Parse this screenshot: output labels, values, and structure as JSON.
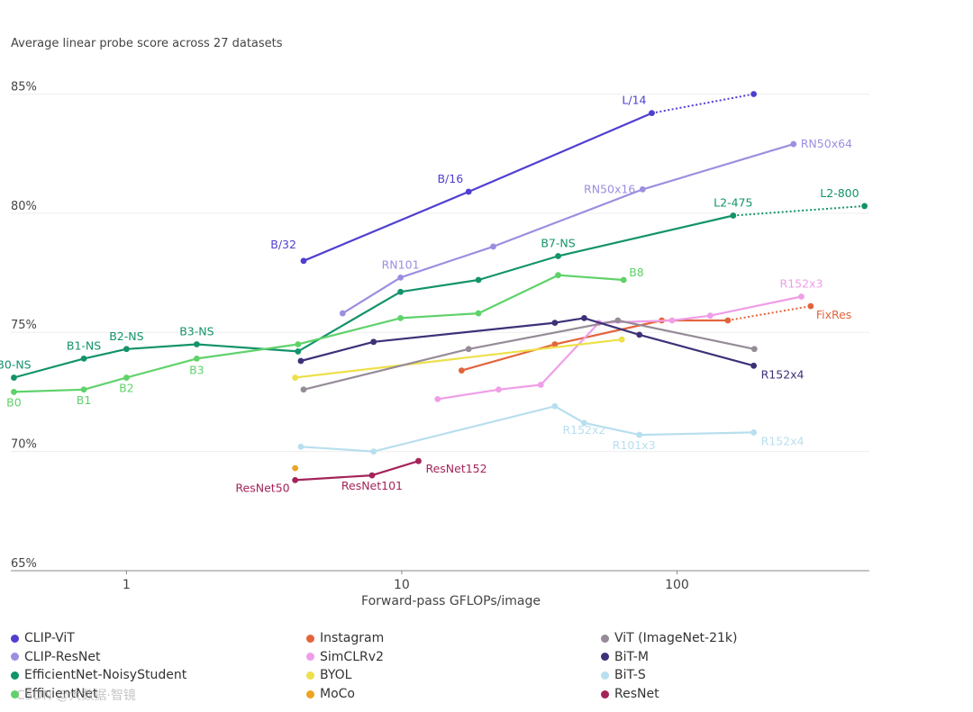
{
  "chart_data": {
    "type": "line",
    "title": "Average linear probe score across 27 datasets",
    "xlabel": "Forward-pass GFLOPs/image",
    "xscale": "log",
    "xlim": [
      0.38,
      500
    ],
    "ylim": [
      65,
      86
    ],
    "yticks": [
      {
        "value": 85,
        "label": "85%"
      },
      {
        "value": 80,
        "label": "80%"
      },
      {
        "value": 75,
        "label": "75%"
      },
      {
        "value": 70,
        "label": "70%"
      },
      {
        "value": 65,
        "label": "65%"
      }
    ],
    "xticks": [
      {
        "value": 1,
        "label": "1"
      },
      {
        "value": 10,
        "label": "10"
      },
      {
        "value": 100,
        "label": "100"
      }
    ],
    "series": [
      {
        "name": "CLIP-ViT",
        "color": "#4f3fd0",
        "points": [
          {
            "x": 4.4,
            "y": 78.0,
            "label": "B/32"
          },
          {
            "x": 17.5,
            "y": 80.9,
            "label": "B/16"
          },
          {
            "x": 81,
            "y": 84.2,
            "label": "L/14"
          }
        ],
        "extension": [
          {
            "x": 81,
            "y": 84.2
          },
          {
            "x": 190,
            "y": 85.0
          }
        ]
      },
      {
        "name": "CLIP-ResNet",
        "color": "#9b8fe0",
        "points": [
          {
            "x": 6.1,
            "y": 75.8
          },
          {
            "x": 9.9,
            "y": 77.3,
            "label": "RN101"
          },
          {
            "x": 21.5,
            "y": 78.6
          },
          {
            "x": 75,
            "y": 81.0,
            "label": "RN50x16"
          },
          {
            "x": 265,
            "y": 82.9,
            "label": "RN50x64"
          }
        ]
      },
      {
        "name": "EfficientNet-NoisyStudent",
        "color": "#13936b",
        "points": [
          {
            "x": 0.39,
            "y": 73.1,
            "label": "B0-NS"
          },
          {
            "x": 0.7,
            "y": 73.9,
            "label": "B1-NS"
          },
          {
            "x": 1.0,
            "y": 74.3,
            "label": "B2-NS"
          },
          {
            "x": 1.8,
            "y": 74.5,
            "label": "B3-NS"
          },
          {
            "x": 4.2,
            "y": 74.2
          },
          {
            "x": 9.9,
            "y": 76.7
          },
          {
            "x": 19,
            "y": 77.2
          },
          {
            "x": 37,
            "y": 78.2,
            "label": "B7-NS"
          },
          {
            "x": 160,
            "y": 79.9,
            "label": "L2-475"
          }
        ],
        "extension": [
          {
            "x": 160,
            "y": 79.9
          },
          {
            "x": 480,
            "y": 80.3,
            "label": "L2-800"
          }
        ]
      },
      {
        "name": "EfficientNet",
        "color": "#5fd26a",
        "points": [
          {
            "x": 0.39,
            "y": 72.5,
            "label": "B0"
          },
          {
            "x": 0.7,
            "y": 72.6,
            "label": "B1"
          },
          {
            "x": 1.0,
            "y": 73.1,
            "label": "B2"
          },
          {
            "x": 1.8,
            "y": 73.9,
            "label": "B3"
          },
          {
            "x": 4.2,
            "y": 74.5
          },
          {
            "x": 9.9,
            "y": 75.6
          },
          {
            "x": 19,
            "y": 75.8
          },
          {
            "x": 37,
            "y": 77.4
          },
          {
            "x": 64,
            "y": 77.2,
            "label": "B8"
          }
        ]
      },
      {
        "name": "Instagram",
        "color": "#e3643b",
        "points": [
          {
            "x": 16.5,
            "y": 73.4
          },
          {
            "x": 36,
            "y": 74.5
          },
          {
            "x": 88,
            "y": 75.5
          },
          {
            "x": 153,
            "y": 75.5
          }
        ],
        "extension": [
          {
            "x": 153,
            "y": 75.5
          },
          {
            "x": 306,
            "y": 76.1,
            "label": "FixRes"
          }
        ]
      },
      {
        "name": "SimCLRv2",
        "color": "#ef9ee8",
        "points": [
          {
            "x": 13.5,
            "y": 72.2
          },
          {
            "x": 22.5,
            "y": 72.6
          },
          {
            "x": 32,
            "y": 72.8
          },
          {
            "x": 52,
            "y": 75.4
          },
          {
            "x": 96,
            "y": 75.5
          },
          {
            "x": 132,
            "y": 75.7
          },
          {
            "x": 283,
            "y": 76.5,
            "label": "R152x3"
          }
        ]
      },
      {
        "name": "BYOL",
        "color": "#ede04a",
        "points": [
          {
            "x": 4.1,
            "y": 73.1
          },
          {
            "x": 63,
            "y": 74.7
          }
        ]
      },
      {
        "name": "MoCo",
        "color": "#eca422",
        "points": [
          {
            "x": 4.1,
            "y": 69.3
          }
        ]
      },
      {
        "name": "ViT (ImageNet-21k)",
        "color": "#968b98",
        "points": [
          {
            "x": 4.4,
            "y": 72.6
          },
          {
            "x": 17.5,
            "y": 74.3
          },
          {
            "x": 61,
            "y": 75.5
          },
          {
            "x": 191,
            "y": 74.3
          }
        ]
      },
      {
        "name": "BiT-M",
        "color": "#3c3278",
        "points": [
          {
            "x": 4.3,
            "y": 73.8
          },
          {
            "x": 7.9,
            "y": 74.6
          },
          {
            "x": 36,
            "y": 75.4
          },
          {
            "x": 46,
            "y": 75.6
          },
          {
            "x": 73,
            "y": 74.9
          },
          {
            "x": 190,
            "y": 73.6,
            "label": "R152x4"
          }
        ]
      },
      {
        "name": "BiT-S",
        "color": "#b8dfee",
        "points": [
          {
            "x": 4.3,
            "y": 70.2
          },
          {
            "x": 7.9,
            "y": 70.0
          },
          {
            "x": 36,
            "y": 71.9
          },
          {
            "x": 46,
            "y": 71.2,
            "label": "R152x2"
          },
          {
            "x": 73,
            "y": 70.7,
            "label": "R101x3"
          },
          {
            "x": 190,
            "y": 70.8,
            "label": "R152x4"
          }
        ]
      },
      {
        "name": "ResNet",
        "color": "#a4245a",
        "points": [
          {
            "x": 4.1,
            "y": 68.8,
            "label": "ResNet50"
          },
          {
            "x": 7.8,
            "y": 69.0,
            "label": "ResNet101"
          },
          {
            "x": 11.5,
            "y": 69.6,
            "label": "ResNet152"
          }
        ]
      }
    ]
  },
  "watermark": "CSDN @大数据·智镜"
}
